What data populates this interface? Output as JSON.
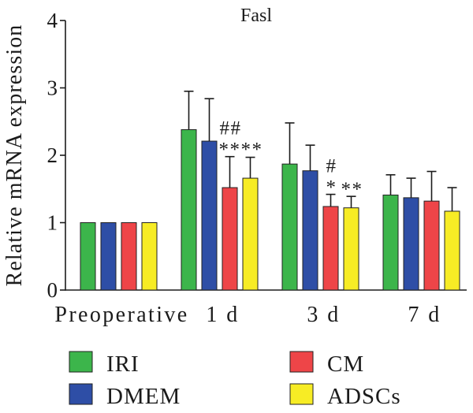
{
  "chart_data": {
    "type": "bar",
    "title": "Fasl",
    "ylabel": "Relative mRNA expression",
    "ylim": [
      0,
      4
    ],
    "yticks": [
      0,
      1,
      2,
      3,
      4
    ],
    "categories": [
      "Preoperative",
      "1 d",
      "3 d",
      "7 d"
    ],
    "series": [
      {
        "name": "IRI",
        "color": "#3cb54b",
        "values": [
          1.0,
          2.38,
          1.87,
          1.41
        ],
        "error": [
          null,
          0.57,
          0.61,
          0.3
        ]
      },
      {
        "name": "DMEM",
        "color": "#2e4ea6",
        "values": [
          1.0,
          2.21,
          1.77,
          1.37
        ],
        "error": [
          null,
          0.63,
          0.38,
          0.29
        ]
      },
      {
        "name": "CM",
        "color": "#ee4548",
        "values": [
          1.0,
          1.52,
          1.24,
          1.32
        ],
        "error": [
          null,
          0.46,
          0.18,
          0.44
        ]
      },
      {
        "name": "ADSCs",
        "color": "#f7ec25",
        "values": [
          1.0,
          1.66,
          1.22,
          1.17
        ],
        "error": [
          null,
          0.31,
          0.17,
          0.35
        ]
      }
    ],
    "annotations": [
      {
        "text": "##",
        "category": "1 d",
        "series": [
          "CM"
        ]
      },
      {
        "text": "****",
        "category": "1 d",
        "series": [
          "CM",
          "ADSCs"
        ]
      },
      {
        "text": "#",
        "category": "3 d",
        "series": [
          "CM"
        ]
      },
      {
        "text": "*",
        "category": "3 d",
        "series": [
          "CM"
        ]
      },
      {
        "text": "**",
        "category": "3 d",
        "series": [
          "ADSCs"
        ]
      }
    ],
    "legend": {
      "placement": "bottom",
      "columns": 2
    },
    "grid": false
  }
}
